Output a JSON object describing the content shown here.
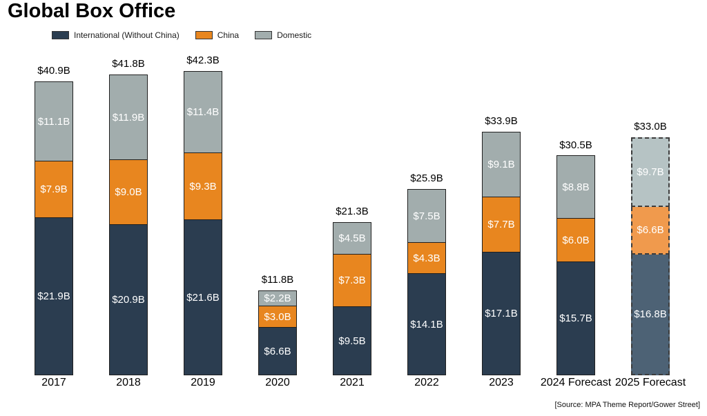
{
  "title": "Global Box Office",
  "source": "[Source: MPA Theme Report/Gower Street]",
  "legend": [
    {
      "label": "International (Without China)",
      "color": "#2B3D50"
    },
    {
      "label": "China",
      "color": "#E8861F"
    },
    {
      "label": "Domestic",
      "color": "#A2ADAD"
    }
  ],
  "chart_data": {
    "type": "bar",
    "stacked": true,
    "title": "Global Box Office",
    "xlabel": "",
    "ylabel": "",
    "ylim": [
      0,
      45
    ],
    "grid": false,
    "legend_position": "top-left",
    "value_unit": "USD billions",
    "categories": [
      "2017",
      "2018",
      "2019",
      "2020",
      "2021",
      "2022",
      "2023",
      "2024 Forecast",
      "2025 Forecast"
    ],
    "series": [
      {
        "name": "International (Without China)",
        "color": "#2B3D50",
        "forecast_color": "#4D6275",
        "values": [
          21.9,
          20.9,
          21.6,
          6.6,
          9.5,
          14.1,
          17.1,
          15.7,
          16.8
        ]
      },
      {
        "name": "China",
        "color": "#E8861F",
        "forecast_color": "#F09A4D",
        "values": [
          7.9,
          9.0,
          9.3,
          3.0,
          7.3,
          4.3,
          7.7,
          6.0,
          6.6
        ]
      },
      {
        "name": "Domestic",
        "color": "#A2ADAD",
        "forecast_color": "#B6C3C4",
        "values": [
          11.1,
          11.9,
          11.4,
          2.2,
          4.5,
          7.5,
          9.1,
          8.8,
          9.7
        ]
      }
    ],
    "totals": [
      "$40.9B",
      "$41.8B",
      "$42.3B",
      "$11.8B",
      "$21.3B",
      "$25.9B",
      "$33.9B",
      "$30.5B",
      "$33.0B"
    ],
    "forecast_index": 8,
    "segment_label_format": "$%.1fB"
  }
}
